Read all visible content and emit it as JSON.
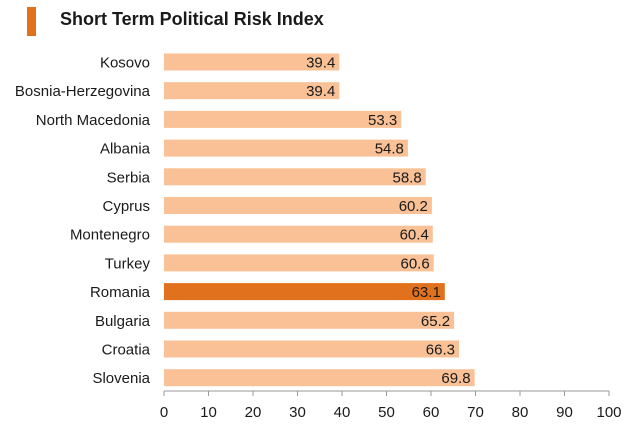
{
  "colors": {
    "accent": "#e2711d",
    "bar": "#f9c195",
    "highlight_bar": "#e2711d",
    "axis": "#9a9a9a"
  },
  "chart_data": {
    "type": "bar",
    "orientation": "horizontal",
    "title": "Short Term Political Risk Index",
    "categories": [
      "Kosovo",
      "Bosnia-Herzegovina",
      "North Macedonia",
      "Albania",
      "Serbia",
      "Cyprus",
      "Montenegro",
      "Turkey",
      "Romania",
      "Bulgaria",
      "Croatia",
      "Slovenia"
    ],
    "values": [
      39.4,
      39.4,
      53.3,
      54.8,
      58.8,
      60.2,
      60.4,
      60.6,
      63.1,
      65.2,
      66.3,
      69.8
    ],
    "value_labels": [
      "39.4",
      "39.4",
      "53.3",
      "54.8",
      "58.8",
      "60.2",
      "60.4",
      "60.6",
      "63.1",
      "65.2",
      "66.3",
      "69.8"
    ],
    "highlight": "Romania",
    "xlim": [
      0,
      100
    ],
    "xticks": [
      0,
      10,
      20,
      30,
      40,
      50,
      60,
      70,
      80,
      90,
      100
    ],
    "xtick_labels": [
      "0",
      "10",
      "20",
      "30",
      "40",
      "50",
      "60",
      "70",
      "80",
      "90",
      "100"
    ],
    "xlabel": "",
    "ylabel": "",
    "grid": false,
    "legend": "none"
  }
}
